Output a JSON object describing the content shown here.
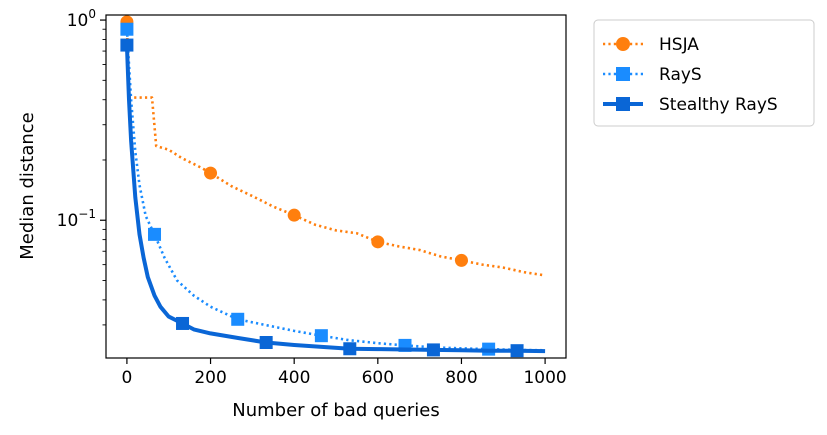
{
  "chart_data": {
    "type": "line",
    "xlabel": "Number of bad queries",
    "ylabel": "Median distance",
    "xlim": [
      -50,
      1050
    ],
    "ylim": [
      0.0205,
      1.06
    ],
    "yscale": "log",
    "x_ticks": [
      0,
      200,
      400,
      600,
      800,
      1000
    ],
    "x_tick_labels": [
      "0",
      "200",
      "400",
      "600",
      "800",
      "1000"
    ],
    "y_ticks": [
      {
        "value": 1,
        "base": "10",
        "exponent": "0"
      },
      {
        "value": 0.1,
        "base": "10",
        "exponent": "−1"
      }
    ],
    "legend_position": "outside-right-top",
    "series": [
      {
        "name": "HSJA",
        "color": "#ff7f0e",
        "line_style": "dotted",
        "marker": "circle",
        "x": [
          0,
          5,
          60,
          70,
          100,
          130,
          180,
          200,
          250,
          300,
          350,
          400,
          450,
          500,
          550,
          600,
          650,
          700,
          750,
          800,
          850,
          900,
          950,
          1000
        ],
        "y": [
          0.98,
          0.41,
          0.41,
          0.235,
          0.225,
          0.205,
          0.182,
          0.172,
          0.148,
          0.132,
          0.117,
          0.106,
          0.095,
          0.089,
          0.086,
          0.078,
          0.074,
          0.071,
          0.066,
          0.063,
          0.06,
          0.058,
          0.055,
          0.053
        ],
        "marker_x": [
          0,
          200,
          400,
          600,
          800
        ],
        "marker_y": [
          0.98,
          0.172,
          0.106,
          0.078,
          0.063
        ]
      },
      {
        "name": "RayS",
        "color": "#1a8cff",
        "line_style": "dotted",
        "marker": "square",
        "x": [
          0,
          10,
          20,
          30,
          45,
          66,
          90,
          120,
          160,
          200,
          265,
          330,
          400,
          465,
          530,
          600,
          665,
          730,
          800,
          865,
          930,
          1000
        ],
        "y": [
          0.9,
          0.4,
          0.22,
          0.15,
          0.105,
          0.085,
          0.065,
          0.05,
          0.042,
          0.037,
          0.032,
          0.03,
          0.028,
          0.0265,
          0.0252,
          0.0243,
          0.0237,
          0.0232,
          0.0229,
          0.0227,
          0.0225,
          0.0224
        ],
        "marker_x": [
          0,
          66,
          265,
          465,
          665,
          865
        ],
        "marker_y": [
          0.9,
          0.085,
          0.032,
          0.0265,
          0.0237,
          0.0227
        ]
      },
      {
        "name": "Stealthy RayS",
        "color": "#0a66d6",
        "line_style": "solid",
        "marker": "square",
        "x": [
          0,
          5,
          10,
          20,
          30,
          40,
          50,
          66,
          80,
          100,
          133,
          160,
          200,
          266,
          333,
          400,
          466,
          533,
          600,
          666,
          733,
          800,
          866,
          933,
          1000
        ],
        "y": [
          0.75,
          0.4,
          0.25,
          0.13,
          0.085,
          0.065,
          0.052,
          0.042,
          0.037,
          0.033,
          0.0305,
          0.0285,
          0.0272,
          0.0258,
          0.0245,
          0.0238,
          0.0233,
          0.0228,
          0.0227,
          0.0226,
          0.0225,
          0.0224,
          0.0223,
          0.0223,
          0.0222
        ],
        "marker_x": [
          0,
          133,
          333,
          533,
          733,
          933
        ],
        "marker_y": [
          0.75,
          0.0305,
          0.0245,
          0.0228,
          0.0225,
          0.0223
        ]
      }
    ]
  }
}
